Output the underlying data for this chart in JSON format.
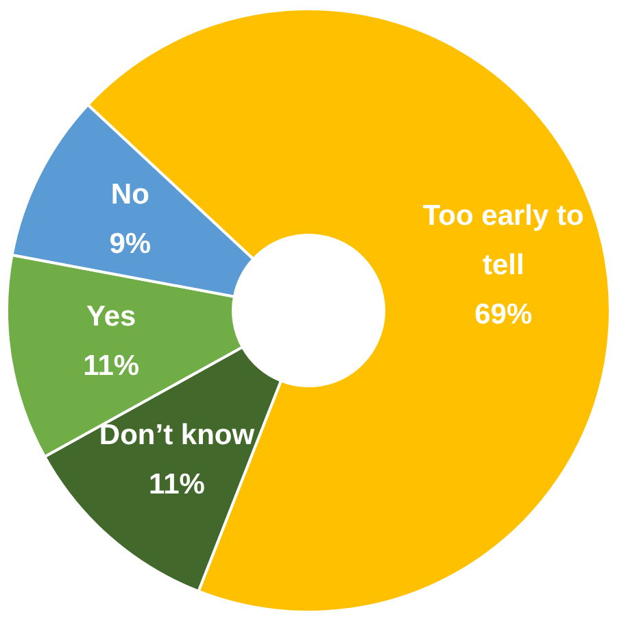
{
  "chart_data": {
    "type": "donut",
    "categories": [
      "Too early to tell",
      "Don’t know",
      "Yes",
      "No"
    ],
    "values": [
      69,
      11,
      11,
      9
    ],
    "colors": [
      "#ffc000",
      "#43682b",
      "#70ad47",
      "#5b9bd5"
    ],
    "value_labels": [
      "69%",
      "11%",
      "11%",
      "9%"
    ],
    "legend": false
  }
}
